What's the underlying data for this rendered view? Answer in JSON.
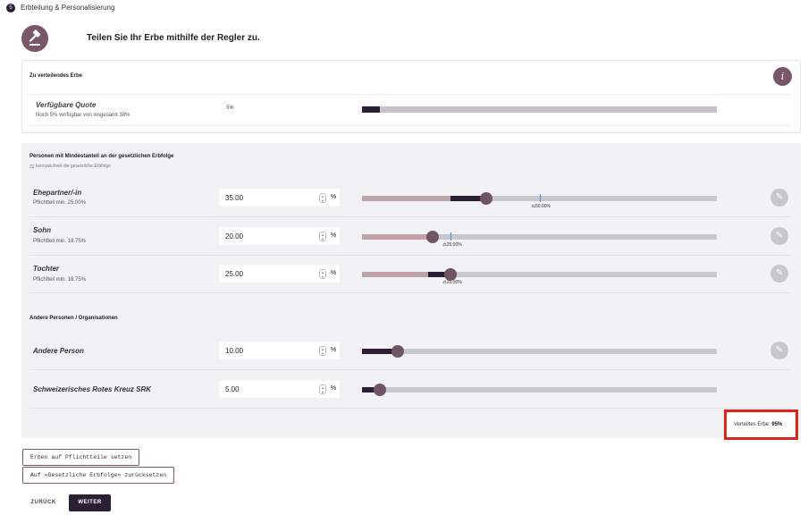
{
  "step": {
    "number": "5",
    "title": "Erbteilung & Personalisierung"
  },
  "hero": {
    "text": "Teilen Sie Ihr Erbe mithilfe der Regler zu."
  },
  "inheritance": {
    "title": "Zu verteilendes Erbe",
    "info_icon": "i",
    "quota_label": "Verfügbare Quote",
    "quota_sub": "Noch 5% verfügbar von insgesamt 38%",
    "quota_value": "5%",
    "quota_fraction": 0.05
  },
  "heirs_section": {
    "title": "Personen mit Mindestanteil an der gesetzlichen Erbfolge",
    "subtitle": "kennzeichnet die gesetzliche Erbfolge",
    "rows": [
      {
        "name": "Ehepartner/-in",
        "sub": "Pflichtteil min. 25.00%",
        "value": "35.00",
        "unit": "%",
        "percent": 35,
        "minimum": 25,
        "legal": 50,
        "legal_label": "50.00%"
      },
      {
        "name": "Sohn",
        "sub": "Pflichtteil min. 18.75%",
        "value": "20.00",
        "unit": "%",
        "percent": 20,
        "minimum": 18.75,
        "legal": 25,
        "legal_label": "25.00%"
      },
      {
        "name": "Tochter",
        "sub": "Pflichtteil min. 18.75%",
        "value": "25.00",
        "unit": "%",
        "percent": 25,
        "minimum": 18.75,
        "legal": 25,
        "legal_label": "25.00%"
      }
    ]
  },
  "others_section": {
    "title": "Andere Personen / Organisationen",
    "rows": [
      {
        "name": "Andere Person",
        "value": "10.00",
        "unit": "%",
        "percent": 10
      },
      {
        "name": "Schweizerisches Rotes Kreuz SRK",
        "value": "5.00",
        "unit": "%",
        "percent": 5
      }
    ]
  },
  "total": {
    "label": "Verteiltes Erbe:",
    "value": "95%"
  },
  "buttons": {
    "set_compulsory": "Erben auf Pflichtteile setzen",
    "reset_legal": "Auf «Gesetzliche Erbfolge» zurücksetzen",
    "back": "ZURÜCK",
    "next": "WEITER"
  },
  "colors": {
    "accent": "#7a5669",
    "dark": "#2b1f35",
    "track": "#c8c8cc",
    "minimum_fill": "#bfa3a8",
    "legal_marker": "#3d8be0",
    "highlight": "#e2231a"
  }
}
